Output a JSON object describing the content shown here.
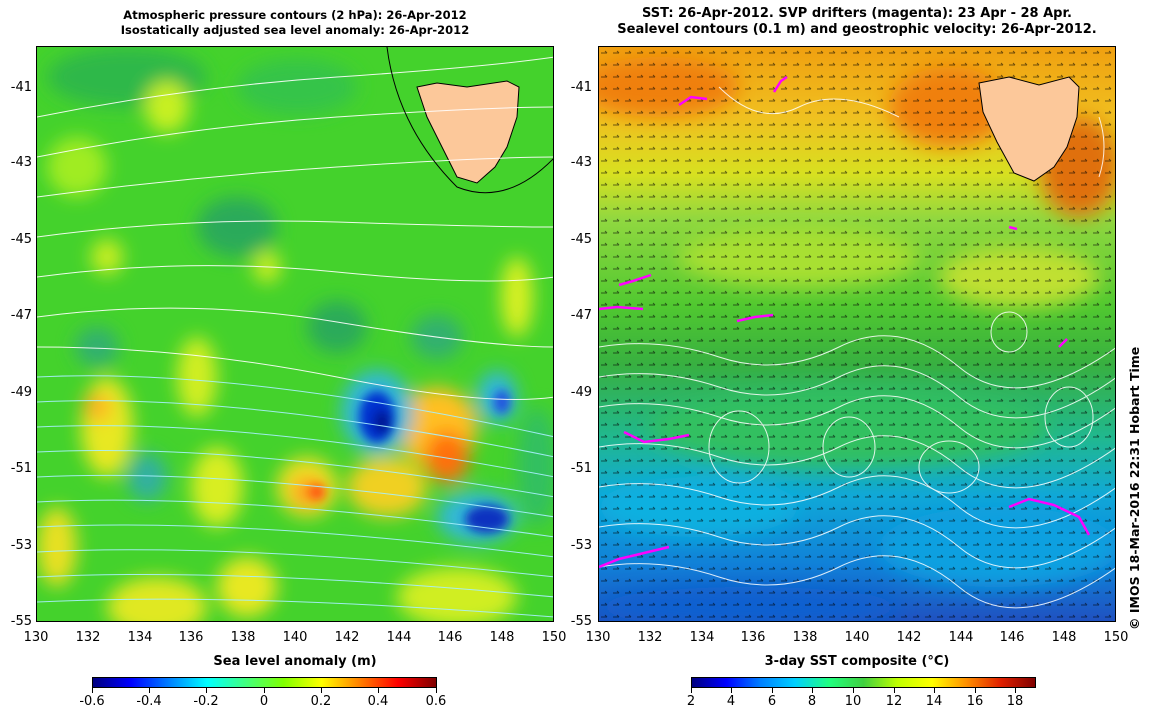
{
  "left_panel": {
    "title_line1": "Atmospheric pressure contours (2 hPa): 26-Apr-2012",
    "title_line2": "Isostatically adjusted sea level anomaly: 26-Apr-2012",
    "colorbar_label": "Sea level anomaly (m)",
    "colorbar_ticks": [
      "-0.6",
      "-0.4",
      "-0.2",
      "0",
      "0.2",
      "0.4",
      "0.6"
    ],
    "colorbar_range": [
      -0.6,
      0.6
    ],
    "land_color": "#fcc89a"
  },
  "right_panel": {
    "title_line1": "SST: 26-Apr-2012. SVP drifters (magenta): 23 Apr - 28 Apr.",
    "title_line2": "Sealevel contours (0.1 m) and geostrophic velocity: 26-Apr-2012.",
    "colorbar_label": "3-day SST composite (°C)",
    "colorbar_ticks": [
      "2",
      "4",
      "6",
      "8",
      "10",
      "12",
      "14",
      "16",
      "18"
    ],
    "colorbar_range": [
      2,
      19
    ],
    "drifter_color": "#ff00ff",
    "land_color": "#fcc89a"
  },
  "axes": {
    "lat_ticks": [
      "-41",
      "-43",
      "-45",
      "-47",
      "-49",
      "-51",
      "-53",
      "-55"
    ],
    "lon_ticks": [
      "130",
      "132",
      "134",
      "136",
      "138",
      "140",
      "142",
      "144",
      "146",
      "148",
      "150"
    ],
    "lat_range": [
      -55,
      -40
    ],
    "lon_range": [
      130,
      150
    ]
  },
  "credit": "© IMOS 18-Mar-2016 22:31 Hobart Time"
}
